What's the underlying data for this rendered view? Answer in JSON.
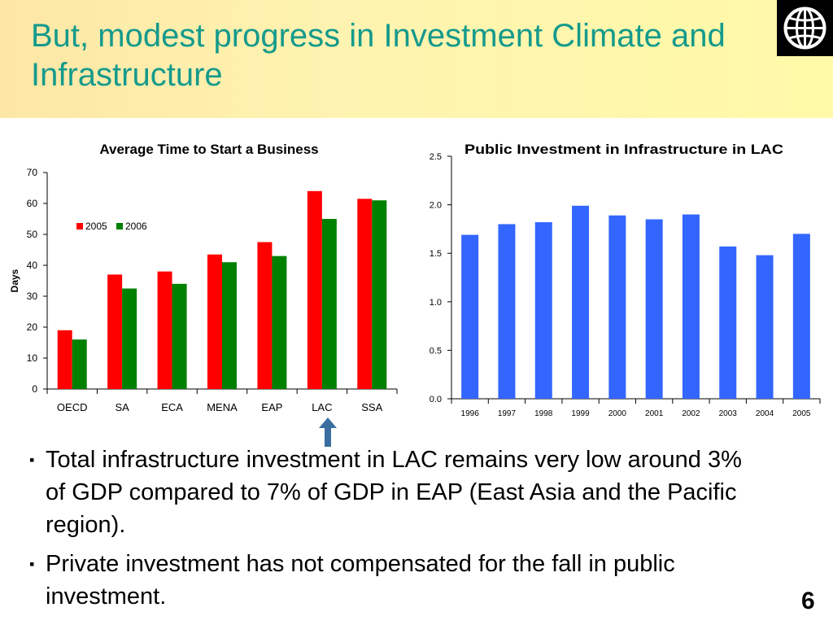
{
  "slide": {
    "title": "But, modest progress in Investment Climate and Infrastructure",
    "page_number": "6",
    "bullet_marker": "▪",
    "bullets": [
      "Total infrastructure investment in LAC remains very low around 3% of GDP compared to 7% of GDP in EAP (East Asia and the Pacific region).",
      "Private investment has not compensated for the fall in public investment."
    ],
    "logo_icon": "world-bank-globe-icon",
    "arrow_icon": "up-arrow-icon",
    "arrow_target": "LAC"
  },
  "chart_data": [
    {
      "type": "bar",
      "title": "Average Time to Start a Business",
      "xlabel": "",
      "ylabel": "Days",
      "categories": [
        "OECD",
        "SA",
        "ECA",
        "MENA",
        "EAP",
        "LAC",
        "SSA"
      ],
      "series": [
        {
          "name": "2005",
          "color": "#ff0000",
          "values": [
            19,
            37,
            38,
            43.5,
            47.5,
            64,
            61.5
          ]
        },
        {
          "name": "2006",
          "color": "#008000",
          "values": [
            16,
            32.5,
            34,
            41,
            43,
            55,
            61
          ]
        }
      ],
      "ylim": [
        0,
        70
      ],
      "yticks": [
        "0",
        "10",
        "20",
        "30",
        "40",
        "50",
        "60",
        "70"
      ],
      "legend": "upper-left",
      "grid": false
    },
    {
      "type": "bar",
      "title": "Public Investment in Infrastructure in LAC",
      "xlabel": "",
      "ylabel": "",
      "categories": [
        "1996",
        "1997",
        "1998",
        "1999",
        "2000",
        "2001",
        "2002",
        "2003",
        "2004",
        "2005"
      ],
      "series": [
        {
          "color": "#3366ff",
          "values": [
            1.69,
            1.8,
            1.82,
            1.99,
            1.89,
            1.85,
            1.9,
            1.57,
            1.48,
            1.7
          ]
        }
      ],
      "ylim": [
        0,
        2.5
      ],
      "yticks": [
        "0.0",
        "0.5",
        "1.0",
        "1.5",
        "2.0",
        "2.5"
      ],
      "legend": "none",
      "grid": false
    }
  ]
}
